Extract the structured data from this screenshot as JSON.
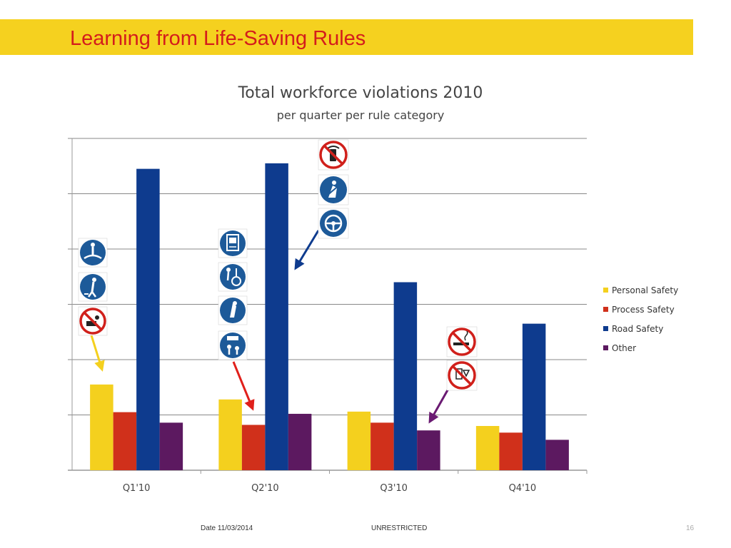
{
  "slide": {
    "title": "Learning from Life-Saving Rules",
    "footer_date": "Date 11/03/2014",
    "footer_classification": "UNRESTRICTED",
    "page_number": "16"
  },
  "colors": {
    "title_bar": "#f5d11f",
    "title_text": "#d41c1c",
    "personal_safety": "#f4d01e",
    "process_safety": "#d0301b",
    "road_safety": "#0e3b8e",
    "other": "#5c1960"
  },
  "icons": [
    "tools-prohibited-sign-icon",
    "person-mandatory-sign-icon",
    "harness-mandatory-sign-icon",
    "permit-mandatory-sign-icon",
    "lifting-mandatory-sign-icon",
    "isolation-mandatory-sign-icon",
    "override-mandatory-sign-icon",
    "phone-prohibited-sign-icon",
    "seatbelt-mandatory-sign-icon",
    "steering-mandatory-sign-icon",
    "smoking-prohibited-sign-icon",
    "alcohol-prohibited-sign-icon"
  ],
  "chart_data": {
    "type": "bar",
    "title": "Total workforce violations 2010",
    "subtitle": "per quarter per rule category",
    "categories": [
      "Q1'10",
      "Q2'10",
      "Q3'10",
      "Q4'10"
    ],
    "series": [
      {
        "name": "Personal Safety",
        "color": "#f4d01e",
        "values": [
          15.5,
          12.8,
          10.6,
          8.0
        ]
      },
      {
        "name": "Process Safety",
        "color": "#d0301b",
        "values": [
          10.5,
          8.2,
          8.6,
          6.8
        ]
      },
      {
        "name": "Road Safety",
        "color": "#0e3b8e",
        "values": [
          54.5,
          55.5,
          34.0,
          26.5
        ]
      },
      {
        "name": "Other",
        "color": "#5c1960",
        "values": [
          8.6,
          10.2,
          7.2,
          5.5
        ]
      }
    ],
    "ylim": [
      0,
      60
    ],
    "grid": true,
    "legend": "right"
  }
}
